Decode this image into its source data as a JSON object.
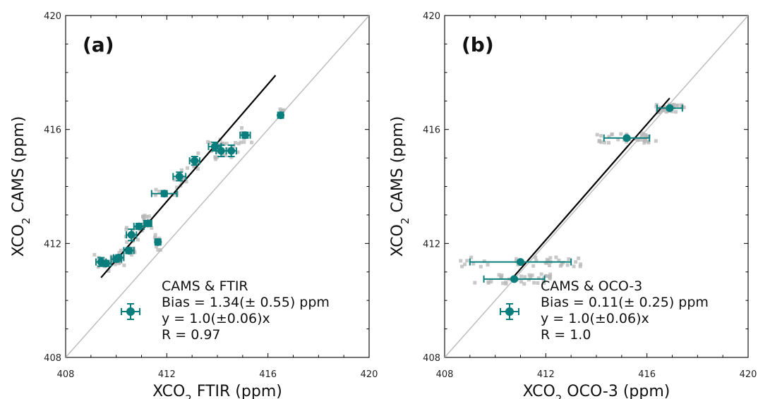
{
  "chart_data": [
    {
      "type": "scatter",
      "panel_label": "(a)",
      "xlabel": "XCO₂ FTIR (ppm)",
      "ylabel": "XCO₂ CAMS (ppm)",
      "xlim": [
        408,
        420
      ],
      "ylim": [
        408,
        420
      ],
      "x_ticks": [
        "408",
        "412",
        "416",
        "420"
      ],
      "y_ticks": [
        "408",
        "412",
        "416",
        "420"
      ],
      "grid": false,
      "legend_position": "bottom-right",
      "legend": [
        "CAMS & FTIR",
        "Bias = 1.34(± 0.55) ppm",
        "y = 1.0(±0.06)x",
        "R = 0.97"
      ],
      "colors": {
        "points": "#0a7d7d",
        "raw": "#b5b5b5",
        "fit": "#000000",
        "one_to_one": "#bdbdbd"
      },
      "fit_line": [
        [
          409.4,
          410.8
        ],
        [
          416.3,
          417.9
        ]
      ],
      "series": [
        {
          "values": [
            {
              "x": 409.4,
              "y": 411.35,
              "xerr": 0.2,
              "yerr": 0.15
            },
            {
              "x": 409.6,
              "y": 411.3,
              "xerr": 0.2,
              "yerr": 0.1
            },
            {
              "x": 410.0,
              "y": 411.45,
              "xerr": 0.2,
              "yerr": 0.1
            },
            {
              "x": 410.1,
              "y": 411.5,
              "xerr": 0.2,
              "yerr": 0.1
            },
            {
              "x": 410.5,
              "y": 411.75,
              "xerr": 0.2,
              "yerr": 0.1
            },
            {
              "x": 410.6,
              "y": 412.3,
              "xerr": 0.2,
              "yerr": 0.2
            },
            {
              "x": 410.9,
              "y": 412.6,
              "xerr": 0.2,
              "yerr": 0.1
            },
            {
              "x": 411.25,
              "y": 412.7,
              "xerr": 0.15,
              "yerr": 0.1
            },
            {
              "x": 411.65,
              "y": 412.05,
              "xerr": 0.1,
              "yerr": 0.1
            },
            {
              "x": 411.9,
              "y": 413.75,
              "xerr": 0.5,
              "yerr": 0.1
            },
            {
              "x": 412.5,
              "y": 414.35,
              "xerr": 0.25,
              "yerr": 0.15
            },
            {
              "x": 413.1,
              "y": 414.9,
              "xerr": 0.2,
              "yerr": 0.15
            },
            {
              "x": 413.9,
              "y": 415.4,
              "xerr": 0.25,
              "yerr": 0.15
            },
            {
              "x": 414.15,
              "y": 415.25,
              "xerr": 0.2,
              "yerr": 0.2
            },
            {
              "x": 414.55,
              "y": 415.25,
              "xerr": 0.2,
              "yerr": 0.2
            },
            {
              "x": 415.1,
              "y": 415.8,
              "xerr": 0.2,
              "yerr": 0.1
            },
            {
              "x": 416.5,
              "y": 416.5,
              "xerr": 0.1,
              "yerr": 0.1
            }
          ]
        }
      ]
    },
    {
      "type": "scatter",
      "panel_label": "(b)",
      "xlabel": "XCO₂ OCO-3 (ppm)",
      "ylabel": "XCO₂ CAMS (ppm)",
      "xlim": [
        408,
        420
      ],
      "ylim": [
        408,
        420
      ],
      "x_ticks": [
        "408",
        "412",
        "416",
        "420"
      ],
      "y_ticks": [
        "408",
        "412",
        "416",
        "420"
      ],
      "grid": false,
      "legend_position": "bottom-right",
      "legend": [
        "CAMS & OCO-3",
        "Bias = 0.11(± 0.25) ppm",
        "y = 1.0(±0.06)x",
        "R = 1.0"
      ],
      "colors": {
        "points": "#0a7d7d",
        "raw": "#b5b5b5",
        "fit": "#000000",
        "one_to_one": "#bdbdbd"
      },
      "fit_line": [
        [
          410.7,
          410.8
        ],
        [
          416.9,
          417.1
        ]
      ],
      "series": [
        {
          "values": [
            {
              "x": 410.75,
              "y": 410.75,
              "xerr": 1.2,
              "yerr": 0.05
            },
            {
              "x": 411.0,
              "y": 411.35,
              "xerr": 2.0,
              "yerr": 0.05
            },
            {
              "x": 415.2,
              "y": 415.7,
              "xerr": 0.9,
              "yerr": 0.05
            },
            {
              "x": 416.9,
              "y": 416.75,
              "xerr": 0.5,
              "yerr": 0.05
            }
          ]
        }
      ]
    }
  ]
}
